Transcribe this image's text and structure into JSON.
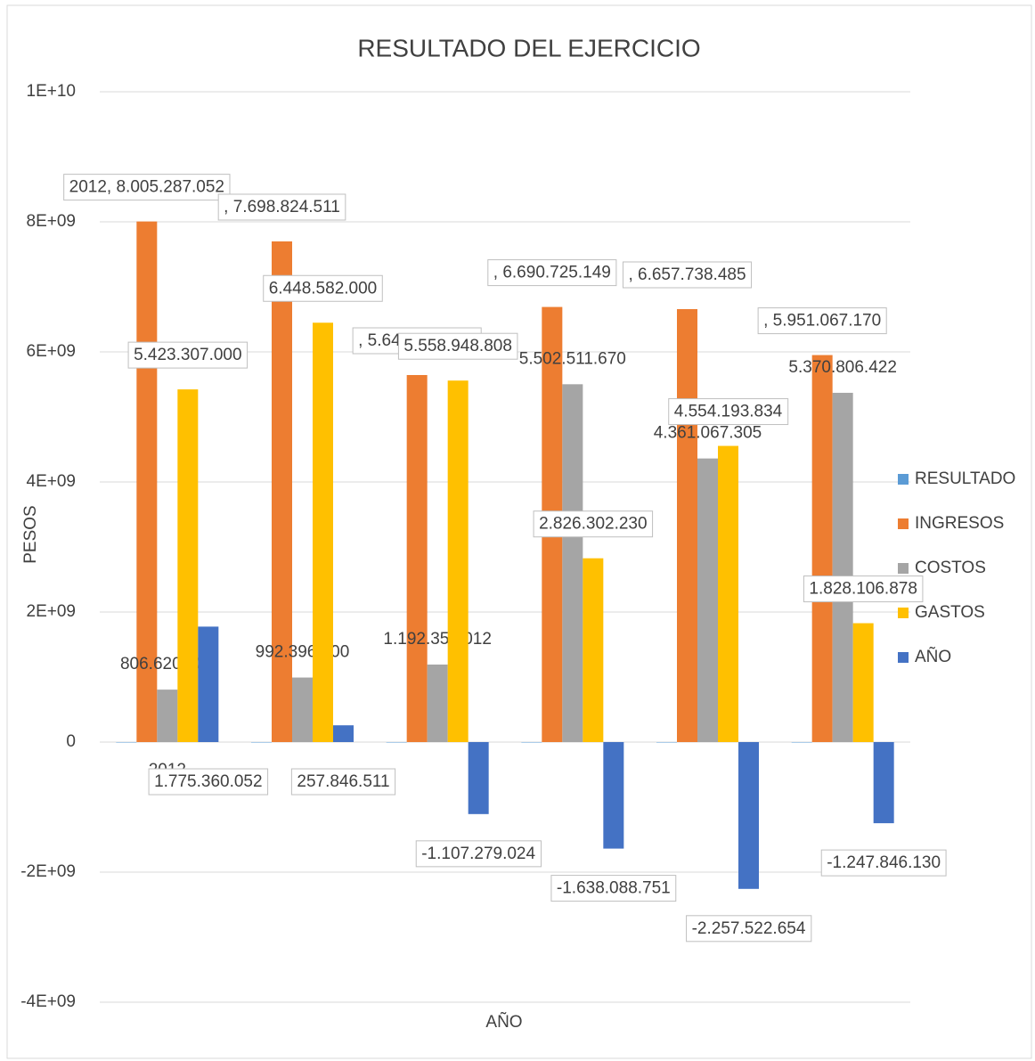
{
  "chart_data": {
    "type": "bar",
    "title": "RESULTADO DEL EJERCICIO",
    "y_label": "PESOS",
    "x_label": "AÑO",
    "categories": [
      "2012",
      null,
      null,
      null,
      null,
      null
    ],
    "ylim": [
      -4000000000,
      10000000000
    ],
    "yticks": [
      {
        "value": -4000000000,
        "label": "-4E+09"
      },
      {
        "value": -2000000000,
        "label": "-2E+09"
      },
      0,
      {
        "value": 2000000000,
        "label": "2E+09"
      },
      {
        "value": 4000000000,
        "label": "4E+09"
      },
      {
        "value": 6000000000,
        "label": "6E+09"
      },
      {
        "value": 8000000000,
        "label": "8E+09"
      },
      {
        "value": 10000000000,
        "label": "1E+10"
      }
    ],
    "grid": true,
    "legend": "right",
    "series": [
      {
        "name": "RESULTADO",
        "color": "#5b9bd5",
        "values": [
          0,
          0,
          0,
          0,
          0,
          0
        ]
      },
      {
        "name": "INGRESOS",
        "color": "#ed7d31",
        "values": [
          8005287052,
          7698824511,
          5644023796,
          6690725149,
          6657738485,
          5951067170
        ],
        "value_labels": [
          "2012, 8.005.287.052",
          ", 7.698.824.511",
          ", 5.644.023.796",
          ", 6.690.725.149",
          ", 6.657.738.485",
          ", 5.951.067.170"
        ]
      },
      {
        "name": "COSTOS",
        "color": "#a5a5a5",
        "values": [
          806620000,
          992396000,
          1192354012,
          5502511670,
          4361067305,
          5370806422
        ],
        "value_labels": [
          "806.620.000",
          "992.396.000",
          "1.192.354.012",
          "5.502.511.670",
          "4.361.067.305",
          "5.370.806.422"
        ]
      },
      {
        "name": "GASTOS",
        "color": "#ffc000",
        "values": [
          5423307000,
          6448582000,
          5558948808,
          2826302230,
          4554193834,
          1828106878
        ],
        "value_labels": [
          "5.423.307.000",
          "6.448.582.000",
          "5.558.948.808",
          "2.826.302.230",
          "4.554.193.834",
          "1.828.106.878"
        ]
      },
      {
        "name": "AÑO",
        "color": "#4472c4",
        "values": [
          1775360052,
          257846511,
          -1107279024,
          -1638088751,
          -2257522654,
          -1247846130
        ],
        "value_labels": [
          "1.775.360.052",
          "257.846.511",
          "-1.107.279.024",
          "-1.638.088.751",
          "-2.257.522.654",
          "-1.247.846.130"
        ]
      }
    ]
  }
}
